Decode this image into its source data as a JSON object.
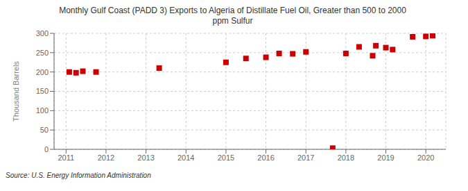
{
  "chart_data": {
    "type": "scatter",
    "title": "Monthly Gulf Coast (PADD 3) Exports to Algeria of Distillate Fuel Oil, Greater than 500 to 2000\nppm Sulfur",
    "y_label": "Thousand Barrels",
    "annotations": [
      "Source: U.S. Energy Information Administration"
    ],
    "color": "#cc0000",
    "marker": "square",
    "grid": true,
    "xlim": [
      2010.7,
      2020.5
    ],
    "xticks": [
      2011,
      2012,
      2013,
      2014,
      2015,
      2016,
      2017,
      2018,
      2019,
      2020
    ],
    "ylim": [
      0,
      300
    ],
    "yticks": [
      0,
      50,
      100,
      150,
      200,
      250,
      300
    ],
    "x": [
      2011.08,
      2011.25,
      2011.42,
      2011.75,
      2013.33,
      2015.0,
      2015.5,
      2016.0,
      2016.33,
      2016.67,
      2017.0,
      2017.67,
      2018.0,
      2018.33,
      2018.67,
      2018.75,
      2019.0,
      2019.17,
      2019.67,
      2020.0,
      2020.17
    ],
    "values": [
      200,
      198,
      202,
      200,
      210,
      225,
      235,
      238,
      248,
      247,
      252,
      3,
      248,
      265,
      242,
      268,
      263,
      258,
      291,
      292,
      294
    ]
  }
}
